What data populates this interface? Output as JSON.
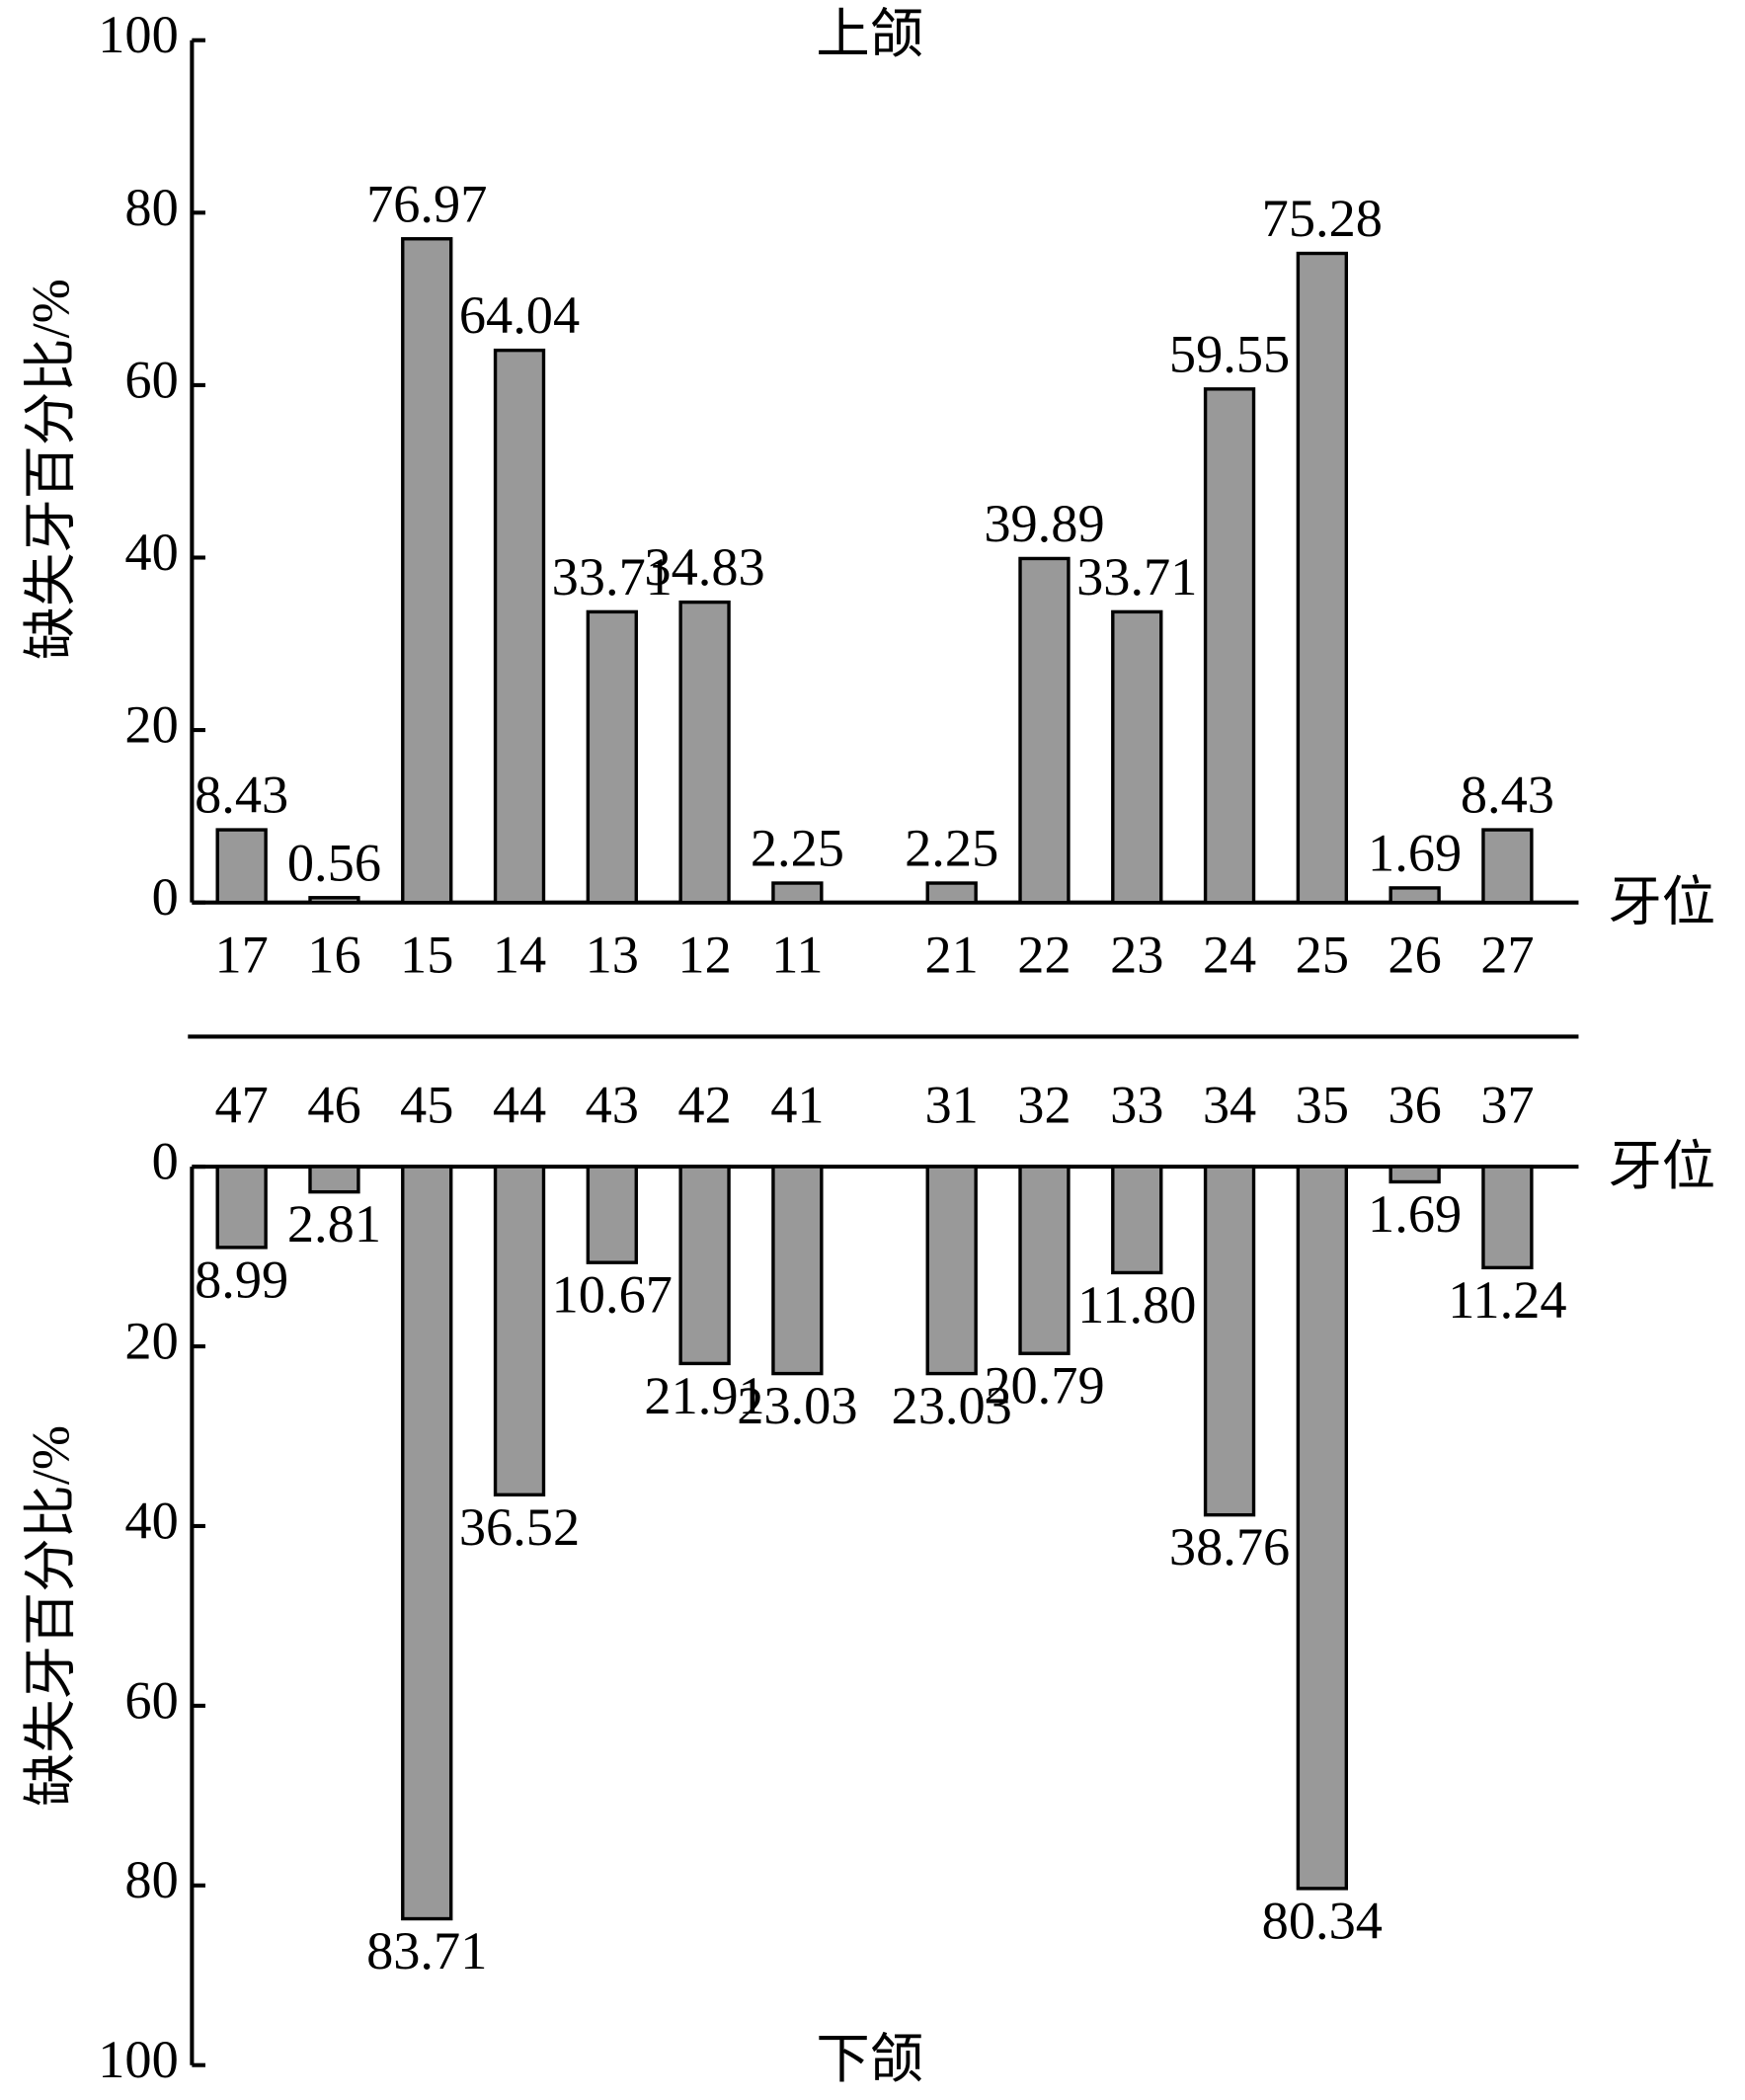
{
  "chart_data": [
    {
      "type": "bar",
      "title": "上颌",
      "y_label": "缺失牙百分比/%",
      "x_label": "牙位",
      "categories": [
        "17",
        "16",
        "15",
        "14",
        "13",
        "12",
        "11",
        null,
        "21",
        "22",
        "23",
        "24",
        "25",
        "26",
        "27"
      ],
      "values": [
        8.43,
        0.56,
        76.97,
        64.04,
        33.71,
        34.83,
        2.25,
        null,
        2.25,
        39.89,
        33.71,
        59.55,
        75.28,
        1.69,
        8.43
      ],
      "color": "#999999",
      "ylim": [
        0,
        100
      ],
      "yticks": [
        0,
        20,
        40,
        60,
        80,
        100
      ]
    },
    {
      "type": "bar",
      "title": "下颌",
      "y_label": "缺失牙百分比/%",
      "x_label": "牙位",
      "inverted": true,
      "categories": [
        "47",
        "46",
        "45",
        "44",
        "43",
        "42",
        "41",
        null,
        "31",
        "32",
        "33",
        "34",
        "35",
        "36",
        "37"
      ],
      "values": [
        8.99,
        2.81,
        83.71,
        36.52,
        10.67,
        21.91,
        23.03,
        null,
        23.03,
        20.79,
        11.8,
        38.76,
        80.34,
        1.69,
        11.24
      ],
      "value_labels": [
        "8.99",
        "2.81",
        "83.71",
        "36.52",
        "10.67",
        "21.91",
        "23.03",
        null,
        "23.03",
        "20.79",
        "11.80",
        "38.76",
        "80.34",
        "1.69",
        "11.24"
      ],
      "color": "#999999",
      "ylim": [
        0,
        100
      ],
      "yticks": [
        0,
        20,
        40,
        60,
        80,
        100
      ]
    }
  ]
}
